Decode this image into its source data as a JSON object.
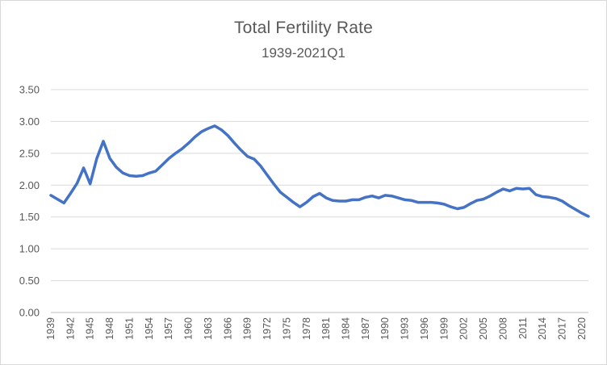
{
  "chart_data": {
    "type": "line",
    "title": "Total Fertility Rate",
    "subtitle": "1939-2021Q1",
    "series_name": "Total fertility rate",
    "x": [
      "1939",
      "1940",
      "1941",
      "1942",
      "1943",
      "1944",
      "1945",
      "1946",
      "1947",
      "1948",
      "1949",
      "1950",
      "1951",
      "1952",
      "1953",
      "1954",
      "1955",
      "1956",
      "1957",
      "1958",
      "1959",
      "1960",
      "1961",
      "1962",
      "1963",
      "1964",
      "1965",
      "1966",
      "1967",
      "1968",
      "1969",
      "1970",
      "1971",
      "1972",
      "1973",
      "1974",
      "1975",
      "1976",
      "1977",
      "1978",
      "1979",
      "1980",
      "1981",
      "1982",
      "1983",
      "1984",
      "1985",
      "1986",
      "1987",
      "1988",
      "1989",
      "1990",
      "1991",
      "1992",
      "1993",
      "1994",
      "1995",
      "1996",
      "1997",
      "1998",
      "1999",
      "2000",
      "2001",
      "2002",
      "2003",
      "2004",
      "2005",
      "2006",
      "2007",
      "2008",
      "2009",
      "2010",
      "2011",
      "2012",
      "2013",
      "2014",
      "2015",
      "2016",
      "2017",
      "2018",
      "2019",
      "2020",
      "2021Q1"
    ],
    "values": [
      1.84,
      1.78,
      1.72,
      1.87,
      2.03,
      2.27,
      2.02,
      2.42,
      2.69,
      2.42,
      2.28,
      2.19,
      2.15,
      2.14,
      2.15,
      2.19,
      2.22,
      2.32,
      2.42,
      2.5,
      2.57,
      2.66,
      2.76,
      2.84,
      2.89,
      2.93,
      2.87,
      2.78,
      2.66,
      2.55,
      2.45,
      2.41,
      2.3,
      2.16,
      2.02,
      1.89,
      1.81,
      1.73,
      1.66,
      1.73,
      1.82,
      1.87,
      1.8,
      1.76,
      1.75,
      1.75,
      1.77,
      1.77,
      1.81,
      1.83,
      1.8,
      1.84,
      1.83,
      1.8,
      1.77,
      1.76,
      1.73,
      1.73,
      1.73,
      1.72,
      1.7,
      1.66,
      1.63,
      1.65,
      1.71,
      1.76,
      1.78,
      1.83,
      1.89,
      1.94,
      1.91,
      1.95,
      1.94,
      1.95,
      1.85,
      1.82,
      1.81,
      1.79,
      1.75,
      1.68,
      1.62,
      1.56,
      1.51
    ],
    "xlabel": "",
    "ylabel": "",
    "ylim": [
      0,
      3.5
    ],
    "y_tick_labels": [
      "0.00",
      "0.50",
      "1.00",
      "1.50",
      "2.00",
      "2.50",
      "3.00",
      "3.50"
    ],
    "y_tick_values": [
      0,
      0.5,
      1.0,
      1.5,
      2.0,
      2.5,
      3.0,
      3.5
    ],
    "x_tick_labels": [
      "1939",
      "1942",
      "1945",
      "1948",
      "1951",
      "1954",
      "1957",
      "1960",
      "1963",
      "1966",
      "1969",
      "1972",
      "1975",
      "1978",
      "1981",
      "1984",
      "1987",
      "1990",
      "1993",
      "1996",
      "1999",
      "2002",
      "2005",
      "2008",
      "2011",
      "2014",
      "2017",
      "2020"
    ],
    "x_tick_interval": 3,
    "grid": true,
    "legend": false,
    "line_color": "#4472C4",
    "line_width": 3.5,
    "gridline_color": "#D9D9D9",
    "axis_line_color": "#BFBFBF",
    "text_color": "#595959",
    "background_color": "#FFFFFF",
    "border_color": "#D9D9D9"
  }
}
